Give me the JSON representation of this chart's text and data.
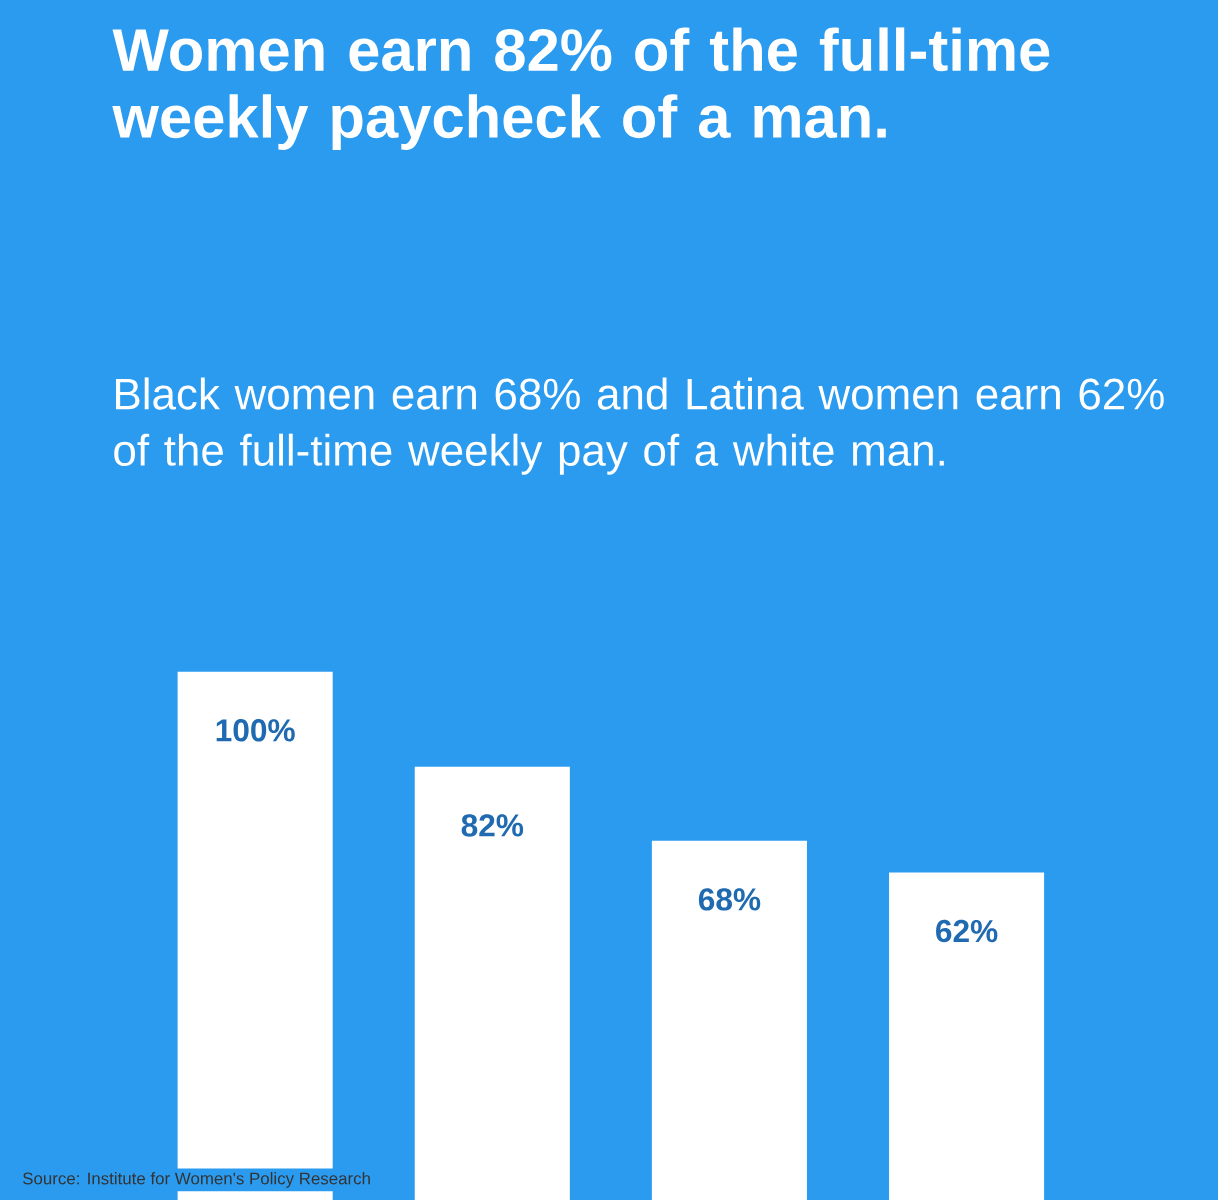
{
  "chart_data": {
    "type": "bar",
    "title": "Women earn 82% of the full-time weekly paycheck of a man.",
    "subtitle": "Black women earn 68% and Latina women earn 62% of the full-time weekly pay of a white man.",
    "categories": [
      null,
      null,
      null,
      null
    ],
    "values": [
      100,
      82,
      68,
      62
    ],
    "value_labels": [
      "100%",
      "82%",
      "68%",
      "62%"
    ],
    "color": "#ffffff",
    "annotations": [
      "Source: Institute for Women's Policy Research"
    ]
  }
}
